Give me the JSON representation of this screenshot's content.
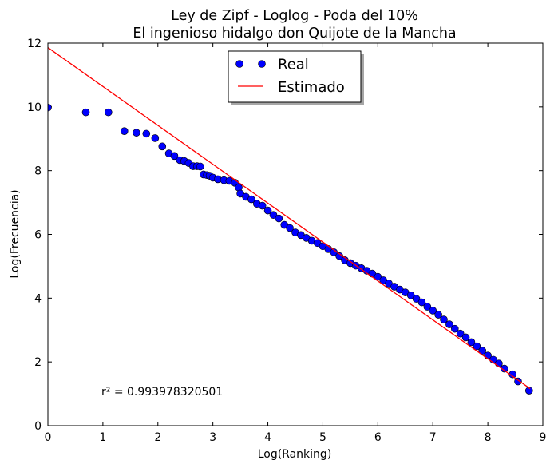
{
  "chart_data": {
    "type": "scatter",
    "title_lines": [
      "Ley de Zipf - Loglog - Poda del 10%",
      "El ingenioso hidalgo don Quijote de la Mancha"
    ],
    "xlabel": "Log(Ranking)",
    "ylabel": "Log(Frecuencia)",
    "xlim": [
      0,
      9
    ],
    "ylim": [
      0,
      12
    ],
    "xticks": [
      0,
      1,
      2,
      3,
      4,
      5,
      6,
      7,
      8,
      9
    ],
    "yticks": [
      0,
      2,
      4,
      6,
      8,
      10,
      12
    ],
    "grid": false,
    "legend_position": "top-center",
    "annotation": "r² = 0.993978320501",
    "series": [
      {
        "name": "Real",
        "kind": "markers",
        "color": "#0000ff",
        "points": [
          [
            0.0,
            9.98
          ],
          [
            0.69,
            9.83
          ],
          [
            1.1,
            9.83
          ],
          [
            1.39,
            9.24
          ],
          [
            1.61,
            9.19
          ],
          [
            1.79,
            9.16
          ],
          [
            1.95,
            9.02
          ],
          [
            2.08,
            8.76
          ],
          [
            2.2,
            8.54
          ],
          [
            2.3,
            8.46
          ],
          [
            2.4,
            8.33
          ],
          [
            2.48,
            8.3
          ],
          [
            2.56,
            8.24
          ],
          [
            2.64,
            8.14
          ],
          [
            2.71,
            8.14
          ],
          [
            2.77,
            8.13
          ],
          [
            2.83,
            7.88
          ],
          [
            2.89,
            7.86
          ],
          [
            2.94,
            7.84
          ],
          [
            3.0,
            7.78
          ],
          [
            3.09,
            7.73
          ],
          [
            3.2,
            7.7
          ],
          [
            3.3,
            7.68
          ],
          [
            3.4,
            7.62
          ],
          [
            3.47,
            7.47
          ],
          [
            3.5,
            7.28
          ],
          [
            3.6,
            7.18
          ],
          [
            3.7,
            7.1
          ],
          [
            3.8,
            6.96
          ],
          [
            3.9,
            6.9
          ],
          [
            4.0,
            6.75
          ],
          [
            4.1,
            6.61
          ],
          [
            4.2,
            6.5
          ],
          [
            4.3,
            6.3
          ],
          [
            4.4,
            6.2
          ],
          [
            4.5,
            6.06
          ],
          [
            4.6,
            5.98
          ],
          [
            4.7,
            5.89
          ],
          [
            4.8,
            5.8
          ],
          [
            4.9,
            5.73
          ],
          [
            5.0,
            5.63
          ],
          [
            5.1,
            5.54
          ],
          [
            5.2,
            5.44
          ],
          [
            5.3,
            5.32
          ],
          [
            5.4,
            5.19
          ],
          [
            5.5,
            5.1
          ],
          [
            5.6,
            5.02
          ],
          [
            5.7,
            4.94
          ],
          [
            5.8,
            4.86
          ],
          [
            5.9,
            4.77
          ],
          [
            6.0,
            4.67
          ],
          [
            6.1,
            4.56
          ],
          [
            6.2,
            4.46
          ],
          [
            6.3,
            4.36
          ],
          [
            6.4,
            4.27
          ],
          [
            6.5,
            4.18
          ],
          [
            6.6,
            4.09
          ],
          [
            6.7,
            3.98
          ],
          [
            6.8,
            3.87
          ],
          [
            6.9,
            3.73
          ],
          [
            7.0,
            3.61
          ],
          [
            7.1,
            3.48
          ],
          [
            7.2,
            3.33
          ],
          [
            7.3,
            3.18
          ],
          [
            7.4,
            3.04
          ],
          [
            7.5,
            2.89
          ],
          [
            7.6,
            2.77
          ],
          [
            7.7,
            2.62
          ],
          [
            7.8,
            2.49
          ],
          [
            7.9,
            2.35
          ],
          [
            8.0,
            2.2
          ],
          [
            8.1,
            2.07
          ],
          [
            8.2,
            1.95
          ],
          [
            8.3,
            1.79
          ],
          [
            8.45,
            1.61
          ],
          [
            8.55,
            1.39
          ],
          [
            8.75,
            1.1
          ]
        ]
      },
      {
        "name": "Estimado",
        "kind": "line",
        "color": "#ff0000",
        "points": [
          [
            0.0,
            11.86
          ],
          [
            8.77,
            1.16
          ]
        ]
      }
    ]
  }
}
